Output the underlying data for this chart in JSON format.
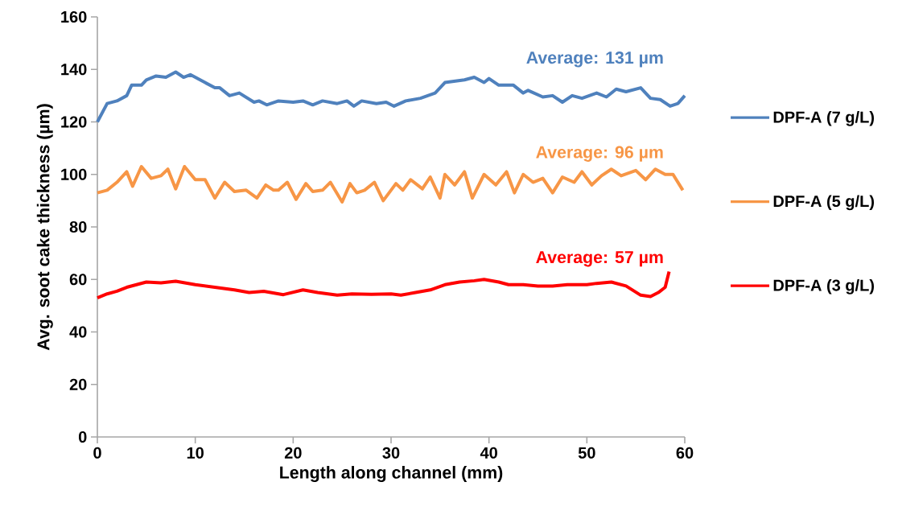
{
  "chart_data": {
    "type": "line",
    "xlabel": "Length along channel (mm)",
    "ylabel": "Avg. soot cake thickness (µm)",
    "xlim": [
      0,
      60
    ],
    "xticks": [
      0,
      10,
      20,
      30,
      40,
      50,
      60
    ],
    "ylim": [
      0,
      160
    ],
    "yticks": [
      0,
      20,
      40,
      60,
      80,
      100,
      120,
      140,
      160
    ],
    "grid": false,
    "legend": "right",
    "marker": "none",
    "line_style": "solid",
    "series": [
      {
        "name": "DPF-A (7 g/L)",
        "color": "#4f81bd",
        "x": [
          0,
          1,
          2,
          3,
          3.5,
          4.5,
          5,
          6,
          7,
          8,
          8.8,
          9.5,
          11,
          12,
          12.5,
          13.5,
          14.5,
          16,
          16.5,
          17.3,
          18.5,
          20,
          21,
          22,
          23,
          24.5,
          25.5,
          26.2,
          27,
          28.5,
          29.5,
          30.3,
          31.5,
          33,
          34.5,
          35.5,
          37.5,
          38.5,
          39.5,
          40,
          41,
          42.5,
          43.5,
          44,
          45.5,
          46.5,
          47.5,
          48.5,
          49.5,
          51,
          52,
          53,
          54,
          55.5,
          56.5,
          57.5,
          58.5,
          59.3,
          60
        ],
        "values": [
          120,
          127,
          128,
          130,
          134,
          134,
          136,
          137.5,
          137,
          139,
          137,
          138,
          135,
          133,
          133,
          130,
          131,
          127.5,
          128,
          126.5,
          128,
          127.5,
          128,
          126.5,
          128,
          127,
          128,
          126,
          128,
          127,
          127.5,
          126,
          128,
          129,
          131,
          135,
          136,
          137,
          135,
          136.5,
          134,
          134,
          131,
          132,
          129.5,
          130,
          127.5,
          130,
          129,
          131,
          129.5,
          132.5,
          131.5,
          133,
          129,
          128.5,
          126,
          127,
          130
        ]
      },
      {
        "name": "DPF-A (5 g/L)",
        "color": "#f79646",
        "x": [
          0,
          1,
          2,
          3,
          3.6,
          4.5,
          5.5,
          6.5,
          7.2,
          8,
          8.9,
          10,
          11,
          12,
          13,
          14,
          15.2,
          16.3,
          17.2,
          18,
          18.5,
          19.4,
          20.3,
          21.3,
          22,
          23,
          23.8,
          25,
          25.8,
          26.5,
          27.3,
          28.3,
          29.2,
          30.5,
          31.2,
          32,
          33.2,
          34,
          35,
          35.5,
          36.5,
          37.5,
          38.3,
          39.5,
          40.7,
          41.8,
          42.6,
          43.5,
          44.5,
          45.5,
          46.5,
          47.5,
          48.7,
          49.5,
          50.5,
          51.5,
          52.5,
          53.5,
          55,
          56,
          57,
          58,
          58.8,
          59.8
        ],
        "values": [
          93,
          94,
          97,
          101,
          95.5,
          103,
          98.5,
          99.5,
          102,
          94.5,
          103,
          98,
          98,
          91,
          97,
          93.5,
          94,
          91,
          96,
          94,
          94,
          97,
          90.5,
          96.5,
          93.5,
          94,
          97,
          89.5,
          96.5,
          93,
          94,
          97,
          90,
          96.5,
          94,
          98,
          94.5,
          99,
          91,
          100,
          96,
          101,
          91,
          100,
          96,
          101,
          93,
          100,
          97,
          98.5,
          93,
          99,
          97,
          101,
          96,
          99.5,
          102,
          99.5,
          101.5,
          98,
          102,
          100,
          100,
          94
        ]
      },
      {
        "name": "DPF-A (3 g/L)",
        "color": "#ff0000",
        "x": [
          0,
          1,
          2,
          3,
          4,
          5,
          6.5,
          8,
          10,
          12,
          14,
          15.5,
          17,
          19,
          21,
          22.5,
          24.5,
          26,
          28,
          30,
          31,
          32.5,
          34,
          35.5,
          37,
          38.5,
          39.5,
          41,
          42,
          43.5,
          45,
          46.5,
          48,
          50,
          51,
          52.5,
          54,
          55.5,
          56.5,
          57.3,
          58,
          58.4
        ],
        "values": [
          53,
          54.5,
          55.5,
          57,
          58,
          59,
          58.7,
          59.3,
          58,
          57,
          56,
          55,
          55.5,
          54.2,
          56,
          55,
          54,
          54.5,
          54.3,
          54.5,
          54,
          55,
          56,
          58,
          59,
          59.5,
          60,
          59,
          58,
          58,
          57.5,
          57.5,
          58,
          58,
          58.5,
          59,
          57.5,
          54,
          53.5,
          55,
          57,
          63
        ]
      }
    ],
    "annotations": [
      "Average: 131 µm",
      "Average: 96 µm",
      "Average:  57 µm"
    ]
  }
}
